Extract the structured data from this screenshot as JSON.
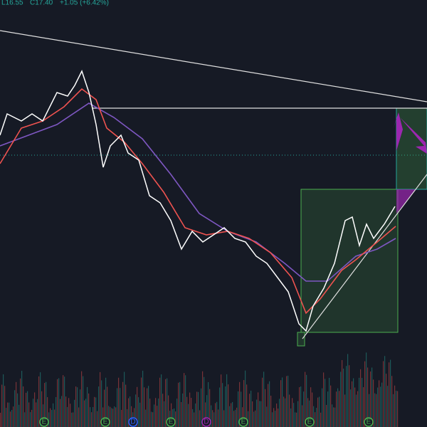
{
  "header": {
    "low": "L16.55",
    "close": "C17.40",
    "change": "+1.05 (+6.42%)"
  },
  "markers": [
    {
      "label": "E"
    },
    {
      "label": "E"
    },
    {
      "label": "D"
    },
    {
      "label": "E"
    },
    {
      "label": "D"
    },
    {
      "label": "E"
    },
    {
      "label": "E"
    },
    {
      "label": "E"
    }
  ]
}
